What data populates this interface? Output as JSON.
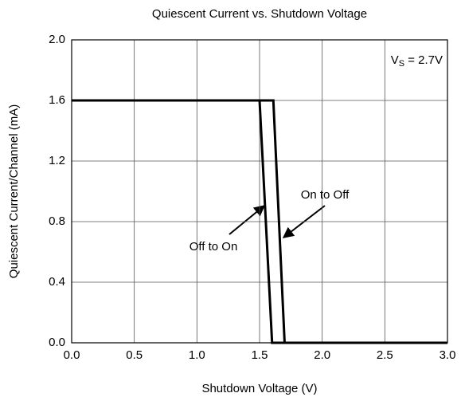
{
  "chart_data": {
    "type": "line",
    "title": "Quiescent Current vs. Shutdown Voltage",
    "x_label": "Shutdown Voltage (V)",
    "y_label": "Quiescent Current/Channel (mA)",
    "annotation_parts": [
      "V",
      "S",
      " = 2.7V"
    ],
    "xlim": [
      0,
      3
    ],
    "ylim": [
      0,
      2
    ],
    "xticks": [
      {
        "value": 0,
        "label": "0.0"
      },
      0.5,
      {
        "value": 1,
        "label": "1.0"
      },
      1.5,
      {
        "value": 2,
        "label": "2.0"
      },
      2.5,
      {
        "value": 3,
        "label": "3.0"
      }
    ],
    "yticks": [
      {
        "value": 0,
        "label": "0.0"
      },
      0.4,
      0.8,
      1.2,
      1.6,
      {
        "value": 2,
        "label": "2.0"
      }
    ],
    "grid": true,
    "series": [
      {
        "name": "Off to On",
        "color": "#000000",
        "x": [
          0,
          1.5,
          1.6,
          3
        ],
        "values": [
          1.6,
          1.6,
          0,
          0
        ]
      },
      {
        "name": "On to Off",
        "color": "#000000",
        "x": [
          0,
          1.61,
          1.7,
          3
        ],
        "values": [
          1.6,
          1.6,
          0,
          0
        ]
      }
    ]
  }
}
